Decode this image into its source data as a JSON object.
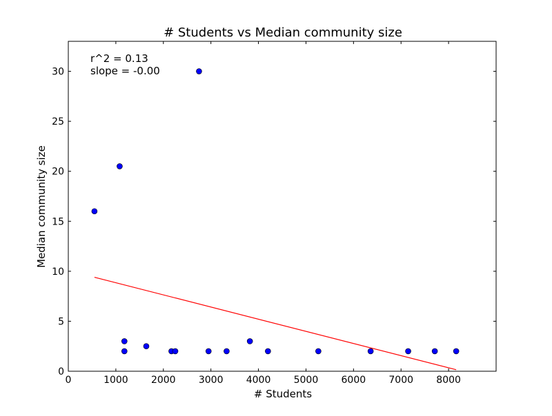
{
  "chart_data": {
    "type": "scatter",
    "title": "# Students vs Median community size",
    "xlabel": "# Students",
    "ylabel": "Median community size",
    "xlim": [
      0,
      9000
    ],
    "ylim": [
      0,
      33
    ],
    "xticks": [
      0,
      1000,
      2000,
      3000,
      4000,
      5000,
      6000,
      7000,
      8000
    ],
    "yticks": [
      0,
      5,
      10,
      15,
      20,
      25,
      30
    ],
    "grid": false,
    "series": [
      {
        "marker_color": "#0000ff",
        "points": [
          {
            "x": 550,
            "y": 16
          },
          {
            "x": 1080,
            "y": 20.5
          },
          {
            "x": 1180,
            "y": 3
          },
          {
            "x": 1180,
            "y": 2
          },
          {
            "x": 1640,
            "y": 2.5
          },
          {
            "x": 2170,
            "y": 2
          },
          {
            "x": 2250,
            "y": 2
          },
          {
            "x": 2750,
            "y": 30
          },
          {
            "x": 2950,
            "y": 2
          },
          {
            "x": 3330,
            "y": 2
          },
          {
            "x": 3820,
            "y": 3
          },
          {
            "x": 4200,
            "y": 2
          },
          {
            "x": 5260,
            "y": 2
          },
          {
            "x": 6360,
            "y": 2
          },
          {
            "x": 7150,
            "y": 2
          },
          {
            "x": 7710,
            "y": 2
          },
          {
            "x": 8160,
            "y": 2
          }
        ]
      }
    ],
    "fit_line": {
      "color": "#ff0000",
      "x": [
        550,
        8160
      ],
      "y": [
        9.4,
        0.15
      ]
    },
    "annotations": [
      "r^2 = 0.13",
      "slope = -0.00"
    ]
  }
}
